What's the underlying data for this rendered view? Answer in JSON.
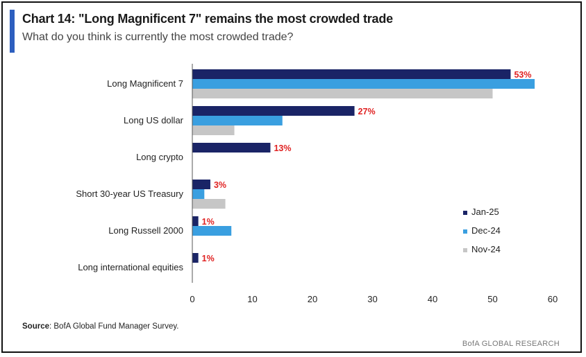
{
  "header": {
    "title": "Chart 14: \"Long Magnificent 7\" remains the most crowded trade",
    "subtitle": "What do you think is currently the most crowded trade?"
  },
  "footer": {
    "source_label": "Source",
    "source_text": ": BofA Global Fund Manager Survey.",
    "brand": "BofA GLOBAL RESEARCH"
  },
  "colors": {
    "accent": "#2d5fbf",
    "jan25": "#1a2466",
    "dec24": "#3a9fe0",
    "nov24": "#c6c6c6",
    "label_red": "#e02222"
  },
  "chart_data": {
    "type": "bar",
    "orientation": "horizontal",
    "title": "Chart 14: \"Long Magnificent 7\" remains the most crowded trade",
    "subtitle": "What do you think is currently the most crowded trade?",
    "xlabel": "",
    "ylabel": "",
    "xlim": [
      0,
      60
    ],
    "xticks": [
      0,
      10,
      20,
      30,
      40,
      50,
      60
    ],
    "grid": false,
    "legend_position": "right",
    "categories": [
      "Long Magnificent 7",
      "Long US dollar",
      "Long crypto",
      "Short 30-year US Treasury",
      "Long Russell 2000",
      "Long international equities"
    ],
    "series": [
      {
        "name": "Jan-25",
        "values": [
          53,
          27,
          13,
          3,
          1,
          1
        ],
        "labels": [
          "53%",
          "27%",
          "13%",
          "3%",
          "1%",
          "1%"
        ]
      },
      {
        "name": "Dec-24",
        "values": [
          57,
          15,
          0,
          2,
          6.5,
          0
        ]
      },
      {
        "name": "Nov-24",
        "values": [
          50,
          7,
          0,
          5.5,
          0,
          0
        ]
      }
    ]
  }
}
